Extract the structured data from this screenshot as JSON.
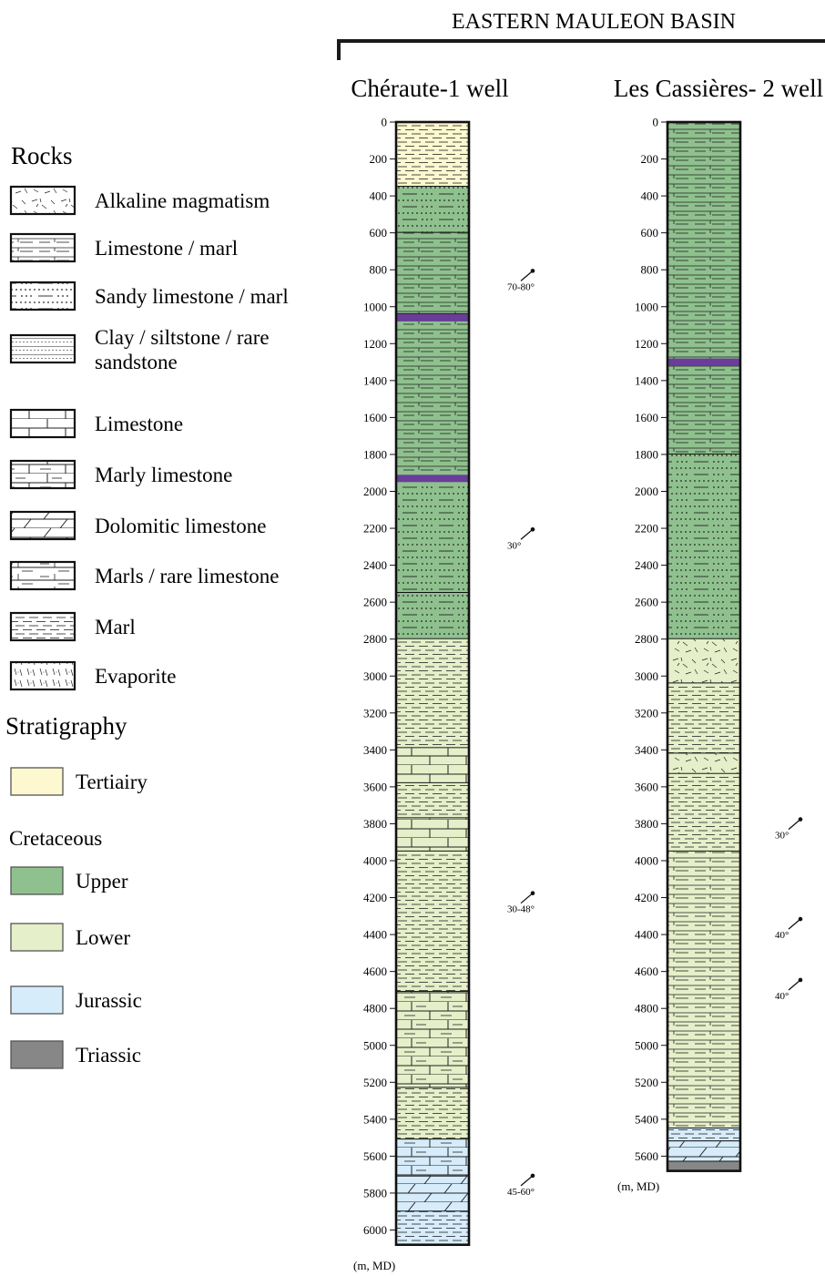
{
  "basin_title": "EASTERN MAULEON BASIN",
  "units_label": "(m, MD)",
  "legend": {
    "rocks_heading": "Rocks",
    "rocks": [
      {
        "key": "alkaline",
        "label_lines": [
          "Alkaline magmatism"
        ]
      },
      {
        "key": "limestone_marl",
        "label_lines": [
          "Limestone / marl"
        ]
      },
      {
        "key": "sandy_limestone",
        "label_lines": [
          "Sandy limestone / marl"
        ]
      },
      {
        "key": "clay",
        "label_lines": [
          "Clay / siltstone / rare",
          "sandstone"
        ]
      },
      {
        "key": "limestone",
        "label_lines": [
          "Limestone"
        ]
      },
      {
        "key": "marly_limestone",
        "label_lines": [
          "Marly limestone"
        ]
      },
      {
        "key": "dolomitic",
        "label_lines": [
          "Dolomitic limestone"
        ]
      },
      {
        "key": "marls_rare",
        "label_lines": [
          "Marls / rare limestone"
        ]
      },
      {
        "key": "marl",
        "label_lines": [
          "Marl"
        ]
      },
      {
        "key": "evaporite",
        "label_lines": [
          "Evaporite"
        ]
      }
    ],
    "stratigraphy_heading": "Stratigraphy",
    "cretaceous_heading": "Cretaceous",
    "strat": [
      {
        "key": "tertiary",
        "label": "Tertiairy",
        "color": "#fdf8cf"
      },
      {
        "key": "upper",
        "label": "Upper",
        "color": "#8fc18e"
      },
      {
        "key": "lower",
        "label": "Lower",
        "color": "#e5efc9"
      },
      {
        "key": "jurassic",
        "label": "Jurassic",
        "color": "#d6ecfb"
      },
      {
        "key": "triassic",
        "label": "Triassic",
        "color": "#878787"
      }
    ]
  },
  "chart_data": {
    "type": "stratigraphic_column",
    "depth_unit": "m, MD",
    "wells": [
      {
        "name": "Chéraute-1 well",
        "total_depth": 6080,
        "depth_ticks": [
          0,
          200,
          400,
          600,
          800,
          1000,
          1200,
          1400,
          1600,
          1800,
          2000,
          2200,
          2400,
          2600,
          2800,
          3000,
          3200,
          3400,
          3600,
          3800,
          4000,
          4200,
          4400,
          4600,
          4800,
          5000,
          5200,
          5400,
          5600,
          5800,
          6000
        ],
        "intervals": [
          {
            "top": 0,
            "base": 350,
            "strat": "tertiary",
            "rock": "marl"
          },
          {
            "top": 350,
            "base": 600,
            "strat": "upper",
            "rock": "sandy_limestone"
          },
          {
            "top": 600,
            "base": 1040,
            "strat": "upper",
            "rock": "limestone_marl"
          },
          {
            "top": 1040,
            "base": 1920,
            "strat": "upper",
            "rock": "limestone_marl"
          },
          {
            "top": 1920,
            "base": 2550,
            "strat": "upper",
            "rock": "sandy_limestone"
          },
          {
            "top": 2550,
            "base": 2800,
            "strat": "upper",
            "rock": "sandy_limestone"
          },
          {
            "top": 2800,
            "base": 3390,
            "strat": "lower",
            "rock": "marl"
          },
          {
            "top": 3390,
            "base": 3580,
            "strat": "lower",
            "rock": "limestone"
          },
          {
            "top": 3580,
            "base": 3770,
            "strat": "lower",
            "rock": "marl"
          },
          {
            "top": 3770,
            "base": 3950,
            "strat": "lower",
            "rock": "limestone"
          },
          {
            "top": 3950,
            "base": 4710,
            "strat": "lower",
            "rock": "marl"
          },
          {
            "top": 4710,
            "base": 5230,
            "strat": "lower",
            "rock": "marly_limestone"
          },
          {
            "top": 5230,
            "base": 5510,
            "strat": "lower",
            "rock": "marl"
          },
          {
            "top": 5510,
            "base": 5710,
            "strat": "jurassic",
            "rock": "marly_limestone"
          },
          {
            "top": 5710,
            "base": 5900,
            "strat": "jurassic",
            "rock": "dolomitic"
          },
          {
            "top": 5900,
            "base": 6080,
            "strat": "jurassic",
            "rock": "marl"
          }
        ],
        "markers": [
          1060,
          1930
        ],
        "dips": [
          {
            "depth": 880,
            "label": "70-80°"
          },
          {
            "depth": 2280,
            "label": "30°"
          },
          {
            "depth": 4250,
            "label": "30-48°"
          },
          {
            "depth": 5780,
            "label": "45-60°"
          }
        ]
      },
      {
        "name": "Les Cassières- 2 well",
        "total_depth": 5680,
        "depth_ticks": [
          0,
          200,
          400,
          600,
          800,
          1000,
          1200,
          1400,
          1600,
          1800,
          2000,
          2200,
          2400,
          2600,
          2800,
          3000,
          3200,
          3400,
          3600,
          3800,
          4000,
          4200,
          4400,
          4600,
          4800,
          5000,
          5200,
          5400,
          5600
        ],
        "intervals": [
          {
            "top": 0,
            "base": 1800,
            "strat": "upper",
            "rock": "limestone_marl"
          },
          {
            "top": 1800,
            "base": 2800,
            "strat": "upper",
            "rock": "sandy_limestone"
          },
          {
            "top": 2800,
            "base": 3040,
            "strat": "lower",
            "rock": "alkaline"
          },
          {
            "top": 3040,
            "base": 3420,
            "strat": "lower",
            "rock": "marl"
          },
          {
            "top": 3420,
            "base": 3530,
            "strat": "lower",
            "rock": "alkaline"
          },
          {
            "top": 3530,
            "base": 3950,
            "strat": "lower",
            "rock": "marl"
          },
          {
            "top": 3950,
            "base": 5450,
            "strat": "lower",
            "rock": "limestone_marl"
          },
          {
            "top": 5450,
            "base": 5520,
            "strat": "jurassic",
            "rock": "marl"
          },
          {
            "top": 5520,
            "base": 5630,
            "strat": "jurassic",
            "rock": "dolomitic"
          },
          {
            "top": 5630,
            "base": 5680,
            "strat": "triassic",
            "rock": "none"
          }
        ],
        "markers": [
          1300
        ],
        "dips": [
          {
            "depth": 3850,
            "label": "30°"
          },
          {
            "depth": 4390,
            "label": "40°"
          },
          {
            "depth": 4720,
            "label": "40°"
          }
        ]
      }
    ]
  }
}
